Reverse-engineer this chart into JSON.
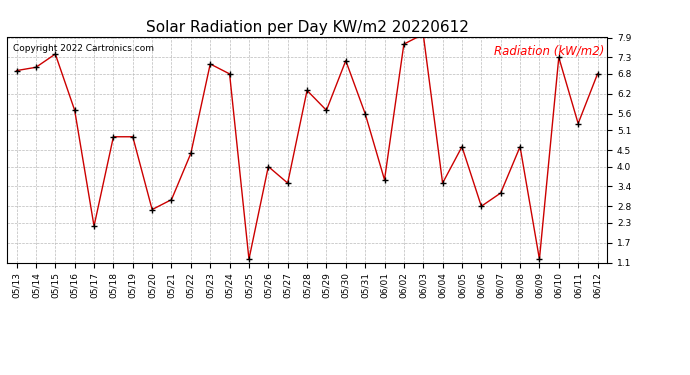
{
  "title": "Solar Radiation per Day KW/m2 20220612",
  "copyright_text": "Copyright 2022 Cartronics.com",
  "legend_label": "Radiation (kW/m2)",
  "dates": [
    "05/13",
    "05/14",
    "05/15",
    "05/16",
    "05/17",
    "05/18",
    "05/19",
    "05/20",
    "05/21",
    "05/22",
    "05/23",
    "05/24",
    "05/25",
    "05/26",
    "05/27",
    "05/28",
    "05/29",
    "05/30",
    "05/31",
    "06/01",
    "06/02",
    "06/03",
    "06/04",
    "06/05",
    "06/06",
    "06/07",
    "06/08",
    "06/09",
    "06/10",
    "06/11",
    "06/12"
  ],
  "values": [
    6.9,
    7.0,
    7.4,
    5.7,
    2.2,
    4.9,
    4.9,
    2.7,
    3.0,
    4.4,
    7.1,
    6.8,
    1.2,
    4.0,
    3.5,
    6.3,
    5.7,
    7.2,
    5.6,
    3.6,
    7.7,
    8.0,
    3.5,
    4.6,
    2.8,
    3.2,
    4.6,
    1.2,
    7.3,
    5.3,
    6.8
  ],
  "ylim_min": 1.1,
  "ylim_max": 7.9,
  "yticks": [
    1.1,
    1.7,
    2.3,
    2.8,
    3.4,
    4.0,
    4.5,
    5.1,
    5.6,
    6.2,
    6.8,
    7.3,
    7.9
  ],
  "line_color": "#cc0000",
  "marker_color": "#000000",
  "bg_color": "#ffffff",
  "grid_color": "#bbbbbb",
  "title_fontsize": 11,
  "copyright_fontsize": 6.5,
  "legend_fontsize": 8.5,
  "tick_fontsize": 6.5
}
